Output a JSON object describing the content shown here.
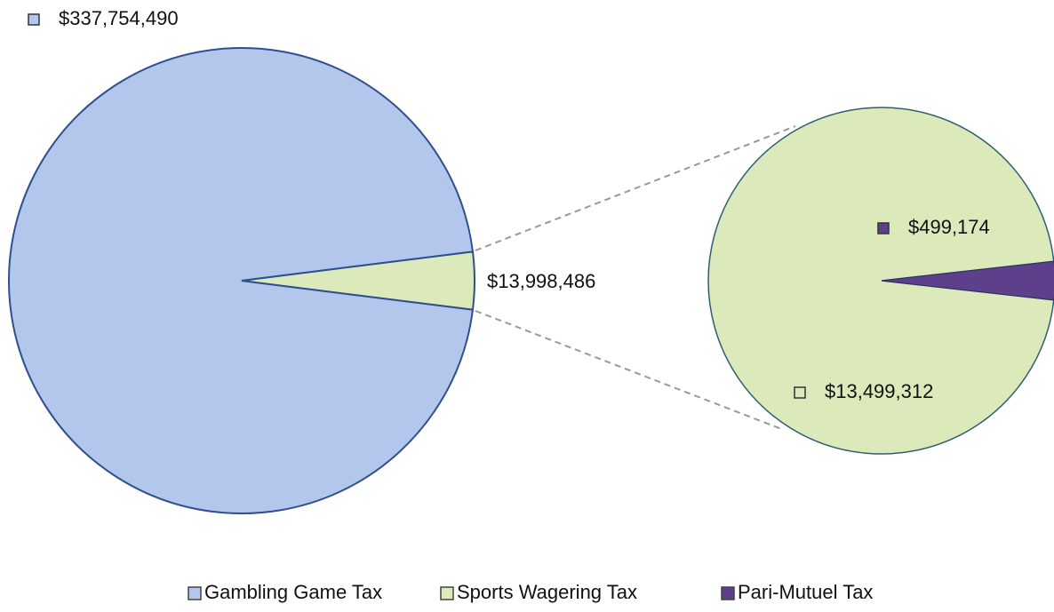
{
  "chart_data": {
    "type": "pie-of-pie",
    "categories": [
      "Gambling Game Tax",
      "Sports Wagering Tax",
      "Pari-Mutuel Tax"
    ],
    "values": [
      337754490,
      13499312,
      499174
    ],
    "value_labels": [
      "$337,754,490",
      "$13,499,312",
      "$499,174"
    ],
    "colors": [
      "#b3c7ec",
      "#dbe9bb",
      "#5e3f8c"
    ],
    "other_value": 13998486,
    "other_label": "$13,998,486",
    "legend": "bottom"
  }
}
